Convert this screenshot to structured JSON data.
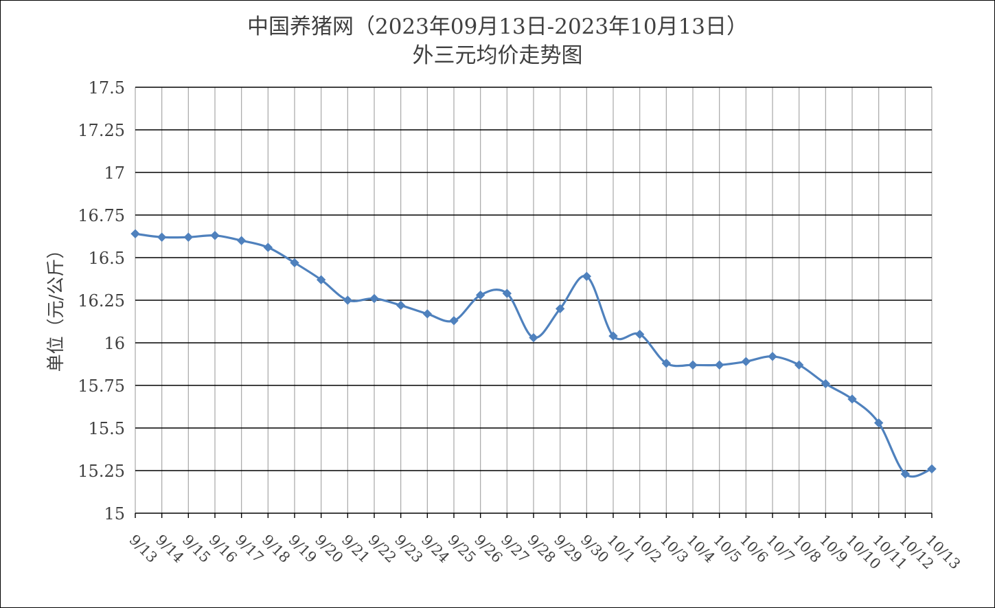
{
  "chart_data": {
    "type": "line",
    "title_line1": "中国养猪网（2023年09月13日-2023年10月13日）",
    "title_line2": "外三元均价走势图",
    "ylabel": "单位（元/公斤）",
    "xlabel": "",
    "ylim": [
      15,
      17.5
    ],
    "yticks": [
      "15",
      "15.25",
      "15.5",
      "15.75",
      "16",
      "16.25",
      "16.5",
      "16.75",
      "17",
      "17.25",
      "17.5"
    ],
    "categories": [
      "9/13",
      "9/14",
      "9/15",
      "9/16",
      "9/17",
      "9/18",
      "9/19",
      "9/20",
      "9/21",
      "9/22",
      "9/23",
      "9/24",
      "9/25",
      "9/26",
      "9/27",
      "9/28",
      "9/29",
      "9/30",
      "10/1",
      "10/2",
      "10/3",
      "10/4",
      "10/5",
      "10/6",
      "10/7",
      "10/8",
      "10/9",
      "10/10",
      "10/11",
      "10/12",
      "10/13"
    ],
    "series": [
      {
        "values": [
          16.64,
          16.62,
          16.62,
          16.63,
          16.6,
          16.56,
          16.47,
          16.37,
          16.25,
          16.26,
          16.22,
          16.17,
          16.13,
          16.28,
          16.29,
          16.03,
          16.2,
          16.39,
          16.04,
          16.05,
          15.88,
          15.87,
          15.87,
          15.89,
          15.92,
          15.87,
          15.76,
          15.67,
          15.53,
          15.23,
          15.26
        ],
        "color": "#4f81bd",
        "marker": "diamond"
      }
    ],
    "grid": "horizontal and vertical on",
    "legend": "none"
  }
}
